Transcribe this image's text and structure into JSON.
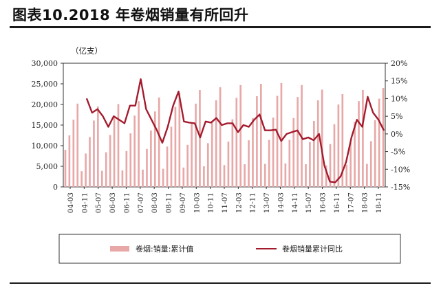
{
  "header": {
    "title": "图表10.2018 年卷烟销量有所回升"
  },
  "chart_data": {
    "type": "bar+line",
    "left_unit": "（亿支）",
    "y_left": {
      "min": 0,
      "max": 30000,
      "ticks": [
        "0",
        "5,000",
        "10,000",
        "15,000",
        "20,000",
        "25,000",
        "30,000"
      ]
    },
    "y_right": {
      "min": -15,
      "max": 20,
      "ticks": [
        "-15%",
        "-10%",
        "-5%",
        "0%",
        "5%",
        "10%",
        "15%",
        "20%"
      ]
    },
    "x_ticks": [
      "04-03",
      "04-11",
      "05-07",
      "06-03",
      "06-11",
      "07-07",
      "08-03",
      "08-11",
      "09-07",
      "10-03",
      "10-11",
      "11-07",
      "12-03",
      "12-11",
      "13-07",
      "14-03",
      "14-11",
      "15-07",
      "16-03",
      "16-11",
      "17-07",
      "18-03",
      "18-11"
    ],
    "series": [
      {
        "name": "卷烟:销量:累计值",
        "type": "bar",
        "axis": "left",
        "color": "#e8a8a8",
        "values": [
          9000,
          12500,
          16300,
          20200,
          3800,
          8100,
          12100,
          16100,
          19500,
          3900,
          8400,
          12600,
          16800,
          20100,
          4000,
          8700,
          13000,
          17300,
          20800,
          4200,
          9200,
          13700,
          18300,
          21700,
          4400,
          9800,
          14600,
          19400,
          22700,
          4700,
          10200,
          15300,
          20200,
          23500,
          5000,
          10600,
          15900,
          21000,
          24200,
          5300,
          11000,
          16400,
          21600,
          24700,
          5500,
          11300,
          16700,
          22000,
          25000,
          5600,
          11400,
          16800,
          22100,
          25200,
          5700,
          11400,
          16700,
          21800,
          24700,
          5500,
          10900,
          16000,
          21000,
          23600,
          5200,
          10400,
          15200,
          20000,
          22500,
          5400,
          10800,
          15800,
          20800,
          23500,
          5600,
          11100,
          16200,
          21400,
          24000
        ]
      },
      {
        "name": "卷烟销量累计同比",
        "type": "line",
        "axis": "right",
        "color": "#a31c2e",
        "values": [
          10,
          6,
          7,
          5,
          2,
          5,
          4,
          3,
          8,
          8,
          15.5,
          7,
          4,
          1,
          -2.5,
          2,
          8,
          12,
          3.5,
          3.2,
          3,
          -1,
          3.5,
          3.2,
          4.5,
          2.5,
          3,
          3,
          0.5,
          2.5,
          2,
          4,
          5.5,
          1,
          1,
          1.2,
          -2,
          0,
          0.5,
          1,
          -1.5,
          -1,
          -1.8,
          0,
          -9,
          -13.5,
          -13.7,
          -12,
          -8,
          -1,
          4,
          2,
          10.5,
          6,
          4,
          1
        ]
      }
    ],
    "legend_position": "bottom",
    "grid": false
  }
}
